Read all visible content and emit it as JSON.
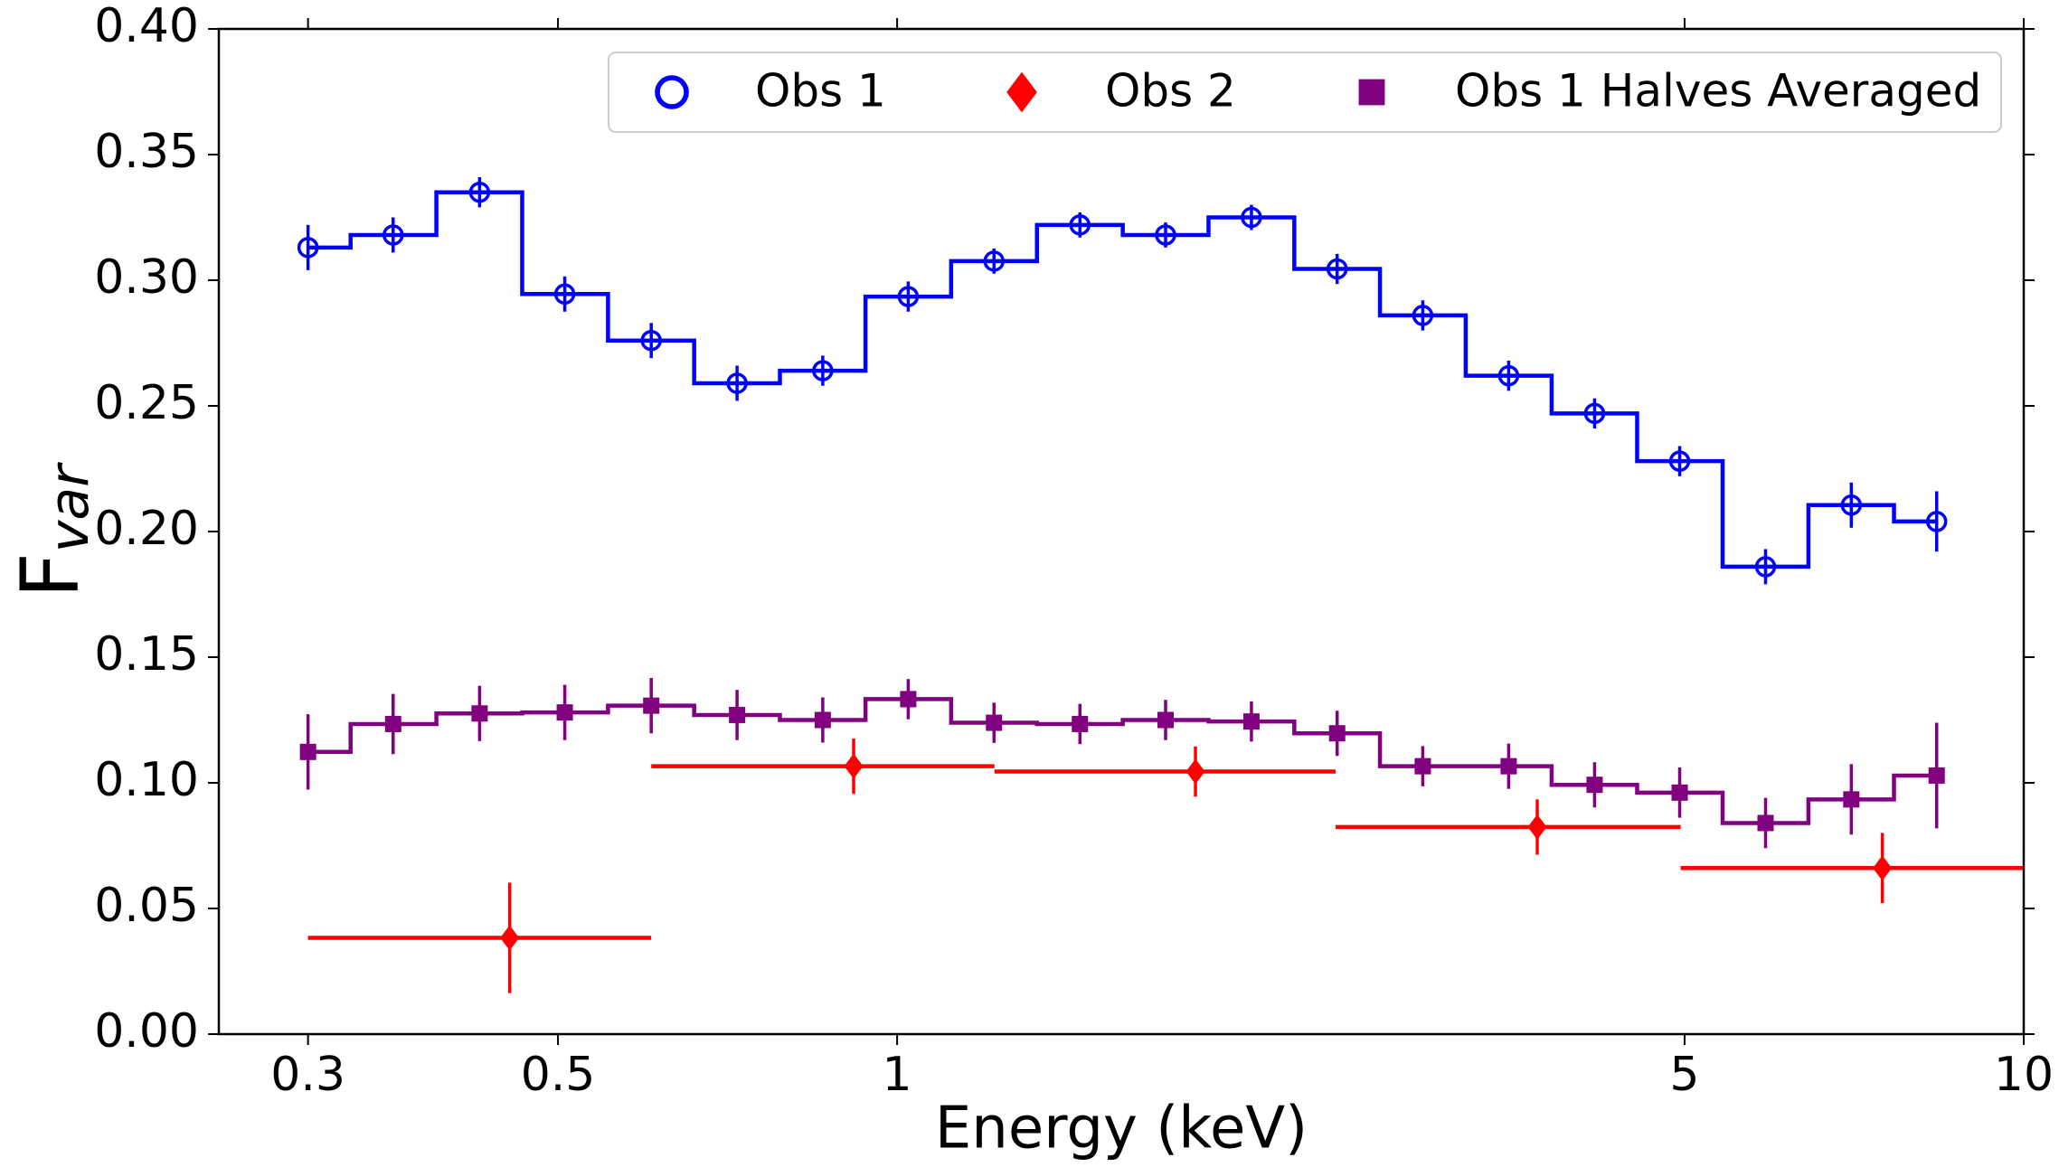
{
  "chart_data": {
    "type": "scatter",
    "xlabel": "Energy (keV)",
    "ylabel": {
      "main": "F",
      "sub": "var"
    },
    "xscale": "log",
    "xlim": [
      0.25,
      10
    ],
    "xticks": [
      0.3,
      0.5,
      1,
      5,
      10
    ],
    "ylim": [
      0,
      0.4
    ],
    "yticks": [
      {
        "value": 0,
        "label": "0.00"
      },
      {
        "value": 0.05,
        "label": "0.05"
      },
      {
        "value": 0.1,
        "label": "0.10"
      },
      {
        "value": 0.15,
        "label": "0.15"
      },
      {
        "value": 0.2,
        "label": "0.20"
      },
      {
        "value": 0.25,
        "label": "0.25"
      },
      {
        "value": 0.3,
        "label": "0.30"
      },
      {
        "value": 0.35,
        "label": "0.35"
      },
      {
        "value": 0.4,
        "label": "0.40"
      }
    ],
    "legend": "upper right",
    "series": [
      {
        "name": "Obs 1",
        "color": "#0000ff",
        "marker": "circle",
        "step": true,
        "x": [
          0.3,
          0.357,
          0.426,
          0.507,
          0.605,
          0.721,
          0.859,
          1.023,
          1.219,
          1.453,
          1.731,
          2.063,
          2.458,
          2.928,
          3.49,
          4.16,
          4.95,
          5.9,
          7.03,
          8.37
        ],
        "values": [
          0.313,
          0.318,
          0.335,
          0.2945,
          0.276,
          0.259,
          0.264,
          0.2935,
          0.3076,
          0.322,
          0.318,
          0.325,
          0.3045,
          0.286,
          0.262,
          0.247,
          0.228,
          0.186,
          0.2105,
          0.204
        ],
        "errors": [
          0.009,
          0.007,
          0.006,
          0.007,
          0.007,
          0.007,
          0.006,
          0.006,
          0.005,
          0.005,
          0.005,
          0.005,
          0.006,
          0.006,
          0.006,
          0.006,
          0.006,
          0.007,
          0.009,
          0.012
        ]
      },
      {
        "name": "Obs 2",
        "color": "#ff0000",
        "marker": "diamond",
        "step": false,
        "x": [
          0.453,
          0.915,
          1.84,
          3.7,
          7.49
        ],
        "xmin": [
          0.3,
          0.605,
          1.22,
          2.45,
          4.96
        ],
        "xmax": [
          0.605,
          1.22,
          2.45,
          4.96,
          10
        ],
        "values": [
          0.0383,
          0.1066,
          0.1045,
          0.0824,
          0.0661
        ],
        "errors": [
          0.022,
          0.011,
          0.01,
          0.011,
          0.014
        ]
      },
      {
        "name": "Obs 1 Halves Averaged",
        "color": "#800080",
        "marker": "square",
        "step": true,
        "x": [
          0.3,
          0.357,
          0.426,
          0.507,
          0.605,
          0.721,
          0.859,
          1.023,
          1.219,
          1.453,
          1.731,
          2.063,
          2.458,
          2.928,
          3.49,
          4.16,
          4.95,
          5.9,
          7.03,
          8.37
        ],
        "values": [
          0.1123,
          0.1234,
          0.1276,
          0.128,
          0.1307,
          0.127,
          0.125,
          0.1333,
          0.1239,
          0.1234,
          0.125,
          0.1244,
          0.1197,
          0.1066,
          0.1066,
          0.0992,
          0.0961,
          0.084,
          0.0934,
          0.1029
        ],
        "errors": [
          0.015,
          0.012,
          0.011,
          0.011,
          0.011,
          0.01,
          0.009,
          0.008,
          0.008,
          0.008,
          0.008,
          0.008,
          0.009,
          0.008,
          0.009,
          0.009,
          0.01,
          0.01,
          0.014,
          0.021
        ]
      }
    ]
  }
}
